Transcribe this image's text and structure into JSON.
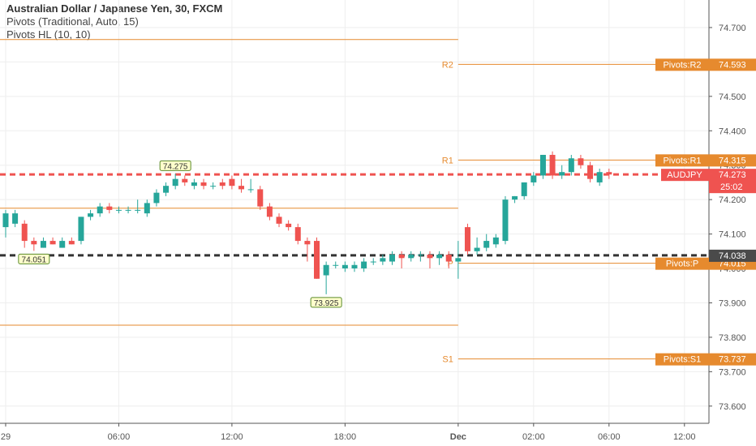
{
  "header": {
    "symbol_line": "Australian Dollar / Japanese Yen, 30, FXCM",
    "indicator_1": "Pivots (Traditional, Auto, 15)",
    "indicator_2": "Pivots HL (10, 10)"
  },
  "chart_data": {
    "type": "candlestick",
    "symbol": "AUDJPY",
    "timeframe": "30",
    "colors": {
      "up": "#26a69a",
      "down": "#ef5350",
      "pivot": "#e68a2e",
      "price_line": "#ef5350",
      "dark_line": "#333333",
      "grid": "#eeeeee"
    },
    "y_axis": {
      "ticks": [
        "74.700",
        "74.600",
        "74.500",
        "74.400",
        "74.300",
        "74.200",
        "74.100",
        "74.000",
        "73.900",
        "73.800",
        "73.700",
        "73.600"
      ],
      "range": [
        73.55,
        74.78
      ]
    },
    "x_axis": {
      "ticks": [
        "29",
        "06:00",
        "12:00",
        "18:00",
        "Dec",
        "02:00",
        "06:00",
        "12:00"
      ],
      "range_hours": [
        -0.3,
        37.3
      ],
      "tick_hours": [
        0,
        6,
        12,
        18,
        24,
        28,
        32,
        36
      ]
    },
    "candles": [
      {
        "t": 0.0,
        "o": 74.12,
        "h": 74.17,
        "l": 74.09,
        "c": 74.16
      },
      {
        "t": 0.5,
        "o": 74.13,
        "h": 74.17,
        "l": 74.12,
        "c": 74.16
      },
      {
        "t": 1.0,
        "o": 74.13,
        "h": 74.14,
        "l": 74.06,
        "c": 74.08
      },
      {
        "t": 1.5,
        "o": 74.08,
        "h": 74.09,
        "l": 74.051,
        "c": 74.07
      },
      {
        "t": 2.0,
        "o": 74.06,
        "h": 74.09,
        "l": 74.06,
        "c": 74.08
      },
      {
        "t": 2.5,
        "o": 74.08,
        "h": 74.09,
        "l": 74.07,
        "c": 74.07
      },
      {
        "t": 3.0,
        "o": 74.06,
        "h": 74.09,
        "l": 74.06,
        "c": 74.08
      },
      {
        "t": 3.5,
        "o": 74.08,
        "h": 74.09,
        "l": 74.07,
        "c": 74.07
      },
      {
        "t": 4.0,
        "o": 74.08,
        "h": 74.15,
        "l": 74.07,
        "c": 74.15
      },
      {
        "t": 4.5,
        "o": 74.15,
        "h": 74.17,
        "l": 74.14,
        "c": 74.16
      },
      {
        "t": 5.0,
        "o": 74.16,
        "h": 74.19,
        "l": 74.15,
        "c": 74.18
      },
      {
        "t": 5.5,
        "o": 74.18,
        "h": 74.19,
        "l": 74.16,
        "c": 74.17
      },
      {
        "t": 6.0,
        "o": 74.17,
        "h": 74.18,
        "l": 74.16,
        "c": 74.17
      },
      {
        "t": 6.5,
        "o": 74.17,
        "h": 74.18,
        "l": 74.16,
        "c": 74.17
      },
      {
        "t": 7.0,
        "o": 74.17,
        "h": 74.2,
        "l": 74.16,
        "c": 74.17
      },
      {
        "t": 7.5,
        "o": 74.16,
        "h": 74.2,
        "l": 74.15,
        "c": 74.19
      },
      {
        "t": 8.0,
        "o": 74.19,
        "h": 74.23,
        "l": 74.18,
        "c": 74.22
      },
      {
        "t": 8.5,
        "o": 74.22,
        "h": 74.25,
        "l": 74.21,
        "c": 74.24
      },
      {
        "t": 9.0,
        "o": 74.24,
        "h": 74.275,
        "l": 74.23,
        "c": 74.26
      },
      {
        "t": 9.5,
        "o": 74.26,
        "h": 74.27,
        "l": 74.24,
        "c": 74.25
      },
      {
        "t": 10.0,
        "o": 74.24,
        "h": 74.26,
        "l": 74.23,
        "c": 74.25
      },
      {
        "t": 10.5,
        "o": 74.25,
        "h": 74.26,
        "l": 74.23,
        "c": 74.24
      },
      {
        "t": 11.0,
        "o": 74.24,
        "h": 74.25,
        "l": 74.23,
        "c": 74.24
      },
      {
        "t": 11.5,
        "o": 74.25,
        "h": 74.26,
        "l": 74.23,
        "c": 74.24
      },
      {
        "t": 12.0,
        "o": 74.26,
        "h": 74.27,
        "l": 74.23,
        "c": 74.24
      },
      {
        "t": 12.5,
        "o": 74.24,
        "h": 74.26,
        "l": 74.22,
        "c": 74.23
      },
      {
        "t": 13.0,
        "o": 74.23,
        "h": 74.26,
        "l": 74.22,
        "c": 74.23
      },
      {
        "t": 13.5,
        "o": 74.23,
        "h": 74.24,
        "l": 74.17,
        "c": 74.18
      },
      {
        "t": 14.0,
        "o": 74.18,
        "h": 74.19,
        "l": 74.14,
        "c": 74.15
      },
      {
        "t": 14.5,
        "o": 74.15,
        "h": 74.16,
        "l": 74.12,
        "c": 74.13
      },
      {
        "t": 15.0,
        "o": 74.13,
        "h": 74.14,
        "l": 74.11,
        "c": 74.12
      },
      {
        "t": 15.5,
        "o": 74.12,
        "h": 74.13,
        "l": 74.07,
        "c": 74.08
      },
      {
        "t": 16.0,
        "o": 74.08,
        "h": 74.09,
        "l": 74.02,
        "c": 74.07
      },
      {
        "t": 16.5,
        "o": 74.08,
        "h": 74.09,
        "l": 73.97,
        "c": 73.97
      },
      {
        "t": 17.0,
        "o": 73.98,
        "h": 74.02,
        "l": 73.925,
        "c": 74.01
      },
      {
        "t": 17.5,
        "o": 74.01,
        "h": 74.02,
        "l": 74.0,
        "c": 74.01
      },
      {
        "t": 18.0,
        "o": 74.0,
        "h": 74.02,
        "l": 73.99,
        "c": 74.01
      },
      {
        "t": 18.5,
        "o": 74.0,
        "h": 74.02,
        "l": 73.99,
        "c": 74.01
      },
      {
        "t": 19.0,
        "o": 74.0,
        "h": 74.03,
        "l": 73.99,
        "c": 74.02
      },
      {
        "t": 19.5,
        "o": 74.02,
        "h": 74.03,
        "l": 74.01,
        "c": 74.02
      },
      {
        "t": 20.0,
        "o": 74.02,
        "h": 74.04,
        "l": 74.01,
        "c": 74.03
      },
      {
        "t": 20.5,
        "o": 74.02,
        "h": 74.05,
        "l": 74.01,
        "c": 74.04
      },
      {
        "t": 21.0,
        "o": 74.04,
        "h": 74.05,
        "l": 74.0,
        "c": 74.03
      },
      {
        "t": 21.5,
        "o": 74.03,
        "h": 74.05,
        "l": 74.02,
        "c": 74.04
      },
      {
        "t": 22.0,
        "o": 74.04,
        "h": 74.05,
        "l": 74.02,
        "c": 74.04
      },
      {
        "t": 22.5,
        "o": 74.04,
        "h": 74.05,
        "l": 74.0,
        "c": 74.03
      },
      {
        "t": 23.0,
        "o": 74.03,
        "h": 74.05,
        "l": 74.01,
        "c": 74.04
      },
      {
        "t": 23.5,
        "o": 74.04,
        "h": 74.05,
        "l": 74.0,
        "c": 74.02
      },
      {
        "t": 24.0,
        "o": 74.02,
        "h": 74.08,
        "l": 73.97,
        "c": 74.03
      },
      {
        "t": 24.5,
        "o": 74.12,
        "h": 74.13,
        "l": 74.04,
        "c": 74.05
      },
      {
        "t": 25.0,
        "o": 74.05,
        "h": 74.09,
        "l": 74.04,
        "c": 74.06
      },
      {
        "t": 25.5,
        "o": 74.06,
        "h": 74.1,
        "l": 74.05,
        "c": 74.08
      },
      {
        "t": 26.0,
        "o": 74.07,
        "h": 74.1,
        "l": 74.06,
        "c": 74.09
      },
      {
        "t": 26.5,
        "o": 74.08,
        "h": 74.21,
        "l": 74.07,
        "c": 74.2
      },
      {
        "t": 27.0,
        "o": 74.2,
        "h": 74.21,
        "l": 74.19,
        "c": 74.21
      },
      {
        "t": 27.5,
        "o": 74.21,
        "h": 74.25,
        "l": 74.2,
        "c": 74.25
      },
      {
        "t": 28.0,
        "o": 74.25,
        "h": 74.28,
        "l": 74.24,
        "c": 74.27
      },
      {
        "t": 28.5,
        "o": 74.27,
        "h": 74.33,
        "l": 74.26,
        "c": 74.33
      },
      {
        "t": 29.0,
        "o": 74.33,
        "h": 74.34,
        "l": 74.26,
        "c": 74.27
      },
      {
        "t": 29.5,
        "o": 74.27,
        "h": 74.3,
        "l": 74.26,
        "c": 74.28
      },
      {
        "t": 30.0,
        "o": 74.28,
        "h": 74.33,
        "l": 74.27,
        "c": 74.32
      },
      {
        "t": 30.5,
        "o": 74.32,
        "h": 74.33,
        "l": 74.29,
        "c": 74.3
      },
      {
        "t": 31.0,
        "o": 74.3,
        "h": 74.31,
        "l": 74.25,
        "c": 74.26
      },
      {
        "t": 31.5,
        "o": 74.25,
        "h": 74.29,
        "l": 74.24,
        "c": 74.28
      },
      {
        "t": 32.0,
        "o": 74.28,
        "h": 74.29,
        "l": 74.26,
        "c": 74.273
      }
    ],
    "pivot_lines": [
      {
        "label": "R2",
        "value": 74.593,
        "tag": "Pivots:R2",
        "price": "74.593",
        "from": 24.0
      },
      {
        "label": "R1",
        "value": 74.315,
        "tag": "Pivots:R1",
        "price": "74.315",
        "from": 24.0
      },
      {
        "label": "P",
        "value": 74.015,
        "tag": "Pivots:P",
        "price": "74.015",
        "from": 24.0
      },
      {
        "label": "S1",
        "value": 73.737,
        "tag": "Pivots:S1",
        "price": "73.737",
        "from": 24.0
      }
    ],
    "previous_pivot_lines": [
      74.665,
      74.175,
      73.835
    ],
    "hl_labels": [
      {
        "text": "74.275",
        "t": 9.0,
        "value": 74.275,
        "position": "above"
      },
      {
        "text": "74.051",
        "t": 1.5,
        "value": 74.051,
        "position": "below"
      },
      {
        "text": "73.925",
        "t": 17.0,
        "value": 73.925,
        "position": "below"
      }
    ],
    "current_price": {
      "symbol": "AUDJPY",
      "value": 74.273,
      "price": "74.273",
      "countdown": "25:02"
    },
    "dark_line": {
      "value": 74.038,
      "price": "74.038"
    }
  }
}
